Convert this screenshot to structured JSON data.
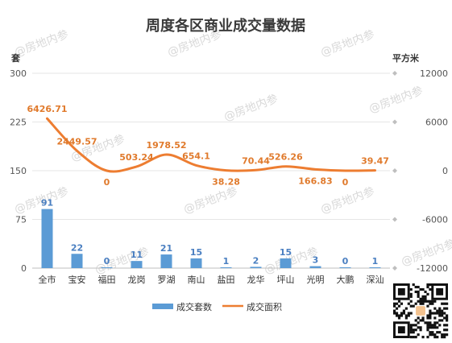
{
  "chart_data": {
    "type": "bar+line",
    "title": "周度各区商业成交量数据",
    "left_unit": "套",
    "right_unit": "平方米",
    "left_ylim": [
      0,
      300
    ],
    "left_ticks": [
      0,
      75,
      150,
      225,
      300
    ],
    "right_ylim": [
      -12000,
      12000
    ],
    "right_ticks": [
      -12000,
      -6000,
      0,
      6000,
      12000
    ],
    "categories": [
      "全市",
      "宝安",
      "福田",
      "龙岗",
      "罗湖",
      "南山",
      "盐田",
      "龙华",
      "坪山",
      "光明",
      "大鹏",
      "深汕"
    ],
    "series": [
      {
        "name": "成交套数",
        "type": "bar",
        "axis": "left",
        "color": "#5b9bd5",
        "values": [
          91,
          22,
          0,
          11,
          21,
          15,
          1,
          2,
          15,
          3,
          0,
          1
        ]
      },
      {
        "name": "成交面积",
        "type": "line",
        "axis": "right",
        "color": "#ed7d31",
        "values": [
          6426.71,
          2449.57,
          0,
          503.24,
          1978.52,
          654.1,
          38.28,
          70.44,
          526.26,
          166.83,
          0,
          39.47
        ]
      }
    ],
    "legend_position": "bottom",
    "watermark": "@房地内参"
  }
}
